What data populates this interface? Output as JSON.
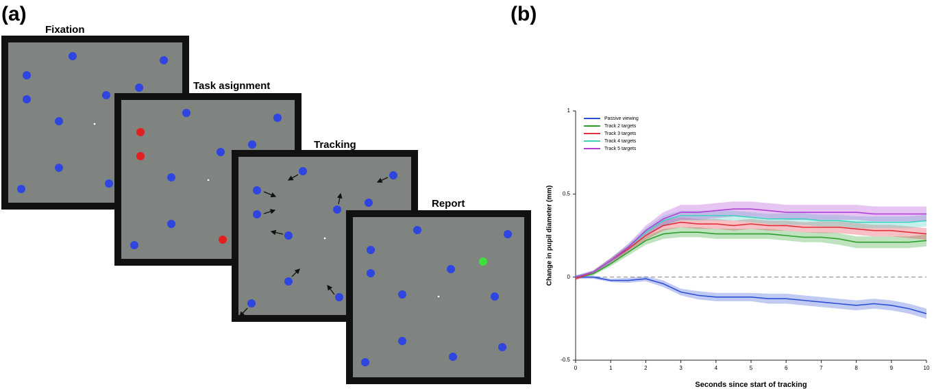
{
  "panel_labels": [
    "(a)",
    "(b)"
  ],
  "diagram": {
    "screens": [
      {
        "label": "Fixation"
      },
      {
        "label": "Task asignment"
      },
      {
        "label": "Tracking"
      },
      {
        "label": "Report"
      }
    ]
  },
  "chart_data": {
    "type": "line",
    "xlabel": "Seconds since start of tracking",
    "ylabel": "Change in pupil diameter (mm)",
    "x": [
      0,
      0.5,
      1,
      1.5,
      2,
      2.5,
      3,
      3.5,
      4,
      4.5,
      5,
      5.5,
      6,
      6.5,
      7,
      7.5,
      8,
      8.5,
      9,
      9.5,
      10
    ],
    "xlim": [
      0,
      10
    ],
    "xticks": [
      0,
      1,
      2,
      3,
      4,
      5,
      6,
      7,
      8,
      9,
      10
    ],
    "ylim": [
      -0.5,
      1
    ],
    "yticks": [
      -0.5,
      0,
      0.5,
      1
    ],
    "reference_line": 0,
    "legend": "upper left",
    "series": [
      {
        "name": "Passive viewing",
        "color": "#2d4fd6",
        "values": [
          0,
          0,
          -0.02,
          -0.02,
          -0.01,
          -0.04,
          -0.09,
          -0.11,
          -0.12,
          -0.12,
          -0.12,
          -0.13,
          -0.13,
          -0.14,
          -0.15,
          -0.16,
          -0.17,
          -0.16,
          -0.17,
          -0.19,
          -0.22
        ],
        "errors": [
          0.01,
          0.01,
          0.01,
          0.015,
          0.015,
          0.02,
          0.02,
          0.025,
          0.025,
          0.025,
          0.025,
          0.03,
          0.03,
          0.03,
          0.03,
          0.03,
          0.03,
          0.03,
          0.03,
          0.03,
          0.03
        ]
      },
      {
        "name": "Track 2 targets",
        "color": "#2ca02c",
        "values": [
          0,
          0.02,
          0.08,
          0.15,
          0.22,
          0.26,
          0.27,
          0.27,
          0.26,
          0.26,
          0.26,
          0.26,
          0.25,
          0.24,
          0.24,
          0.23,
          0.21,
          0.21,
          0.21,
          0.21,
          0.22
        ],
        "errors": [
          0.01,
          0.01,
          0.015,
          0.02,
          0.025,
          0.03,
          0.03,
          0.03,
          0.03,
          0.03,
          0.03,
          0.03,
          0.03,
          0.03,
          0.03,
          0.035,
          0.035,
          0.035,
          0.035,
          0.035,
          0.035
        ]
      },
      {
        "name": "Track 3 targets",
        "color": "#e0303a",
        "values": [
          -0.01,
          0.03,
          0.1,
          0.17,
          0.25,
          0.31,
          0.33,
          0.32,
          0.32,
          0.31,
          0.32,
          0.31,
          0.31,
          0.3,
          0.3,
          0.3,
          0.29,
          0.28,
          0.28,
          0.27,
          0.26
        ],
        "errors": [
          0.01,
          0.01,
          0.015,
          0.02,
          0.025,
          0.03,
          0.03,
          0.03,
          0.03,
          0.03,
          0.03,
          0.03,
          0.03,
          0.03,
          0.035,
          0.035,
          0.035,
          0.035,
          0.035,
          0.035,
          0.035
        ]
      },
      {
        "name": "Track 4 targets",
        "color": "#40d0c0",
        "values": [
          0,
          0.03,
          0.1,
          0.18,
          0.27,
          0.34,
          0.37,
          0.37,
          0.37,
          0.37,
          0.36,
          0.35,
          0.35,
          0.35,
          0.34,
          0.34,
          0.33,
          0.33,
          0.33,
          0.33,
          0.34
        ],
        "errors": [
          0.01,
          0.01,
          0.015,
          0.02,
          0.025,
          0.03,
          0.03,
          0.03,
          0.03,
          0.03,
          0.03,
          0.03,
          0.035,
          0.035,
          0.035,
          0.035,
          0.035,
          0.035,
          0.035,
          0.035,
          0.035
        ]
      },
      {
        "name": "Track 5 targets",
        "color": "#b040d8",
        "values": [
          0,
          0.03,
          0.1,
          0.18,
          0.28,
          0.35,
          0.39,
          0.39,
          0.4,
          0.41,
          0.41,
          0.4,
          0.39,
          0.39,
          0.39,
          0.39,
          0.39,
          0.38,
          0.38,
          0.38,
          0.38
        ],
        "errors": [
          0.01,
          0.01,
          0.015,
          0.02,
          0.03,
          0.04,
          0.045,
          0.045,
          0.045,
          0.045,
          0.045,
          0.045,
          0.045,
          0.045,
          0.045,
          0.045,
          0.045,
          0.045,
          0.045,
          0.045,
          0.045
        ]
      }
    ]
  }
}
